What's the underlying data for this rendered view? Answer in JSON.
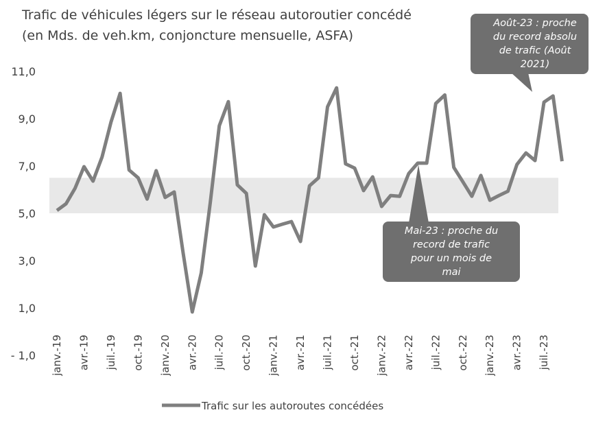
{
  "chart_data": {
    "type": "line",
    "title": "Trafic de véhicules légers sur le réseau autoroutier concédé",
    "subtitle": "(en Mds. de veh.km, conjoncture mensuelle, ASFA)",
    "categories": [
      "janv.-19",
      null,
      null,
      "avr.-19",
      null,
      null,
      "juil.-19",
      null,
      null,
      "oct.-19",
      null,
      null,
      "janv.-20",
      null,
      null,
      "avr.-20",
      null,
      null,
      "juil.-20",
      null,
      null,
      "oct.-20",
      null,
      null,
      "janv.-21",
      null,
      null,
      "avr.-21",
      null,
      null,
      "juil.-21",
      null,
      null,
      "oct.-21",
      null,
      null,
      "janv.-22",
      null,
      null,
      "avr.-22",
      null,
      null,
      "juil.-22",
      null,
      null,
      "oct.-22",
      null,
      null,
      "janv.-23",
      null,
      null,
      "avr.-23",
      null,
      null,
      "juil.-23",
      null,
      null
    ],
    "series": [
      {
        "name": "Trafic sur les autoroutes concédées",
        "color": "#7f7f7f",
        "values": [
          5.12,
          5.4,
          6.05,
          6.97,
          6.36,
          7.38,
          8.86,
          10.07,
          6.83,
          6.5,
          5.6,
          6.8,
          5.67,
          5.9,
          3.3,
          0.83,
          2.48,
          5.46,
          8.7,
          9.72,
          6.2,
          5.84,
          2.77,
          4.94,
          4.42,
          4.54,
          4.65,
          3.81,
          6.16,
          6.5,
          9.5,
          10.3,
          7.09,
          6.91,
          5.96,
          6.54,
          5.29,
          5.75,
          5.72,
          6.68,
          7.12,
          7.12,
          9.64,
          10.0,
          6.94,
          6.33,
          5.72,
          6.6,
          5.55,
          5.75,
          5.93,
          7.06,
          7.55,
          7.23,
          9.7,
          9.96,
          7.2
        ]
      }
    ],
    "ylim": [
      -1,
      11
    ],
    "yticks": [
      {
        "value": -1,
        "label": "- 1,0"
      },
      {
        "value": 1,
        "label": "1,0"
      },
      {
        "value": 3,
        "label": "3,0"
      },
      {
        "value": 5,
        "label": "5,0"
      },
      {
        "value": 7,
        "label": "7,0"
      },
      {
        "value": 9,
        "label": "9,0"
      },
      {
        "value": 11,
        "label": "11,0"
      }
    ],
    "grid": false,
    "shaded_range": [
      5.0,
      6.5
    ],
    "shaded_color": "#e8e8e8",
    "annotations": [
      {
        "lines": [
          "Mai-23 : proche du",
          "record de trafic",
          "pour un mois de",
          "mai"
        ],
        "color": "#6f6f6f"
      },
      {
        "lines": [
          "Août-23 : proche",
          "du record absolu",
          "de trafic (Août",
          "2021)"
        ],
        "color": "#6f6f6f"
      }
    ],
    "legend": "bottom"
  }
}
